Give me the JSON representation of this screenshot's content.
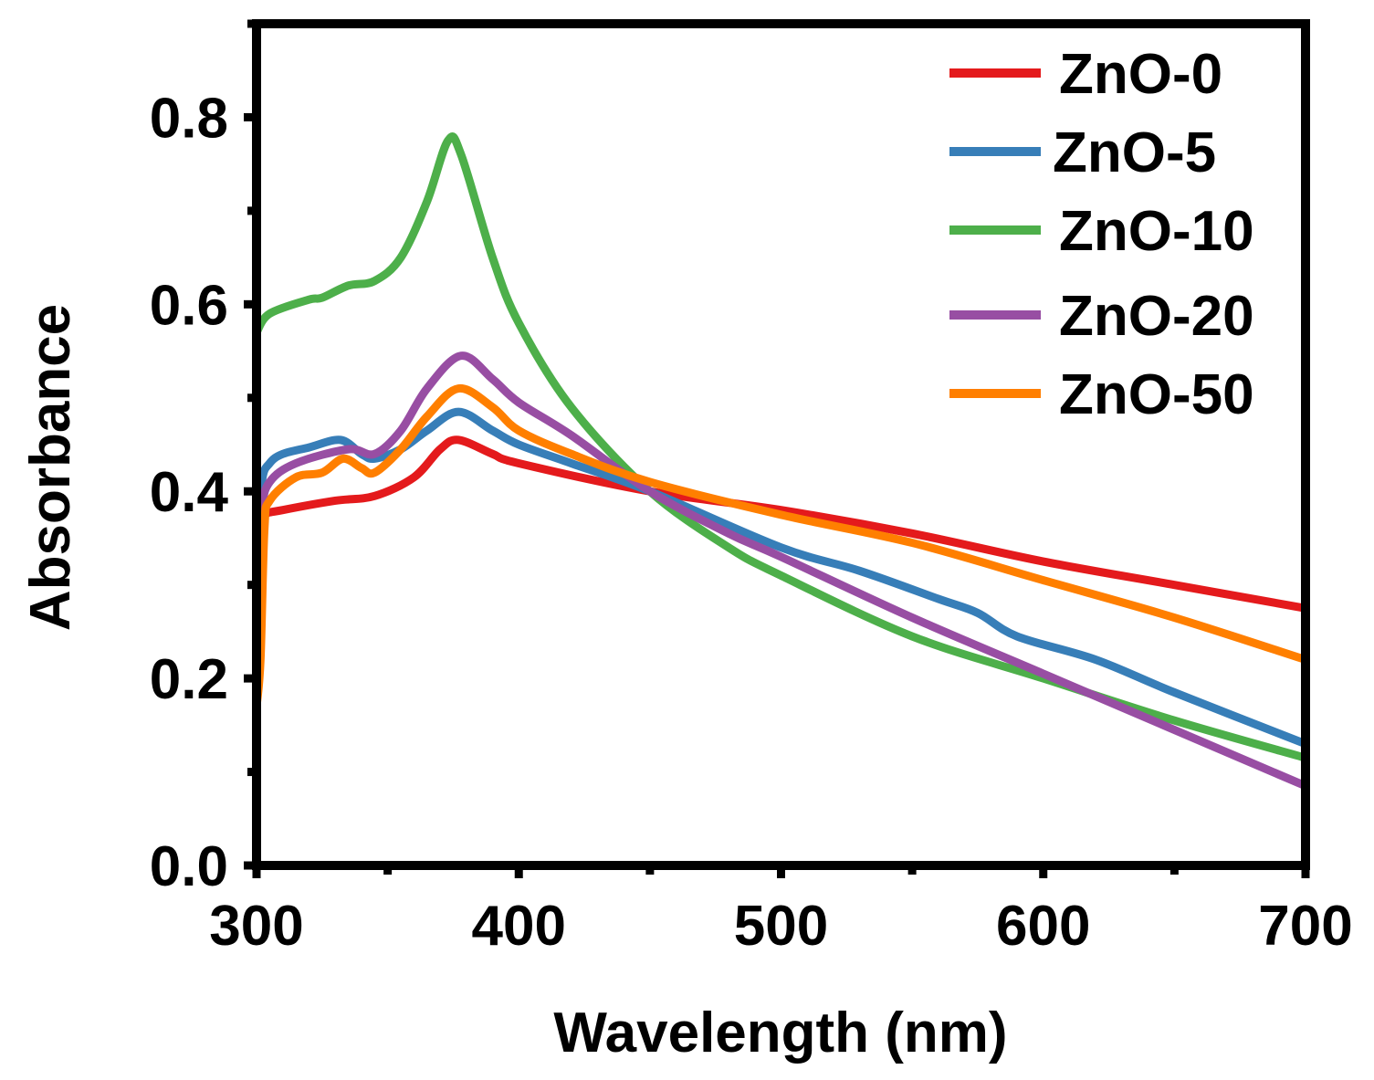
{
  "chart_data": {
    "type": "line",
    "title": "",
    "xlabel": "Wavelength (nm)",
    "ylabel": "Absorbance",
    "xlim": [
      300,
      700
    ],
    "ylim": [
      0,
      0.9
    ],
    "xticks": [
      300,
      400,
      500,
      600,
      700
    ],
    "xtick_labels": [
      "300",
      "400",
      "500",
      "600",
      "700"
    ],
    "yticks": [
      0.0,
      0.2,
      0.4,
      0.6,
      0.8
    ],
    "ytick_labels": [
      "0.0",
      "0.2",
      "0.4",
      "0.6",
      "0.8"
    ],
    "grid": false,
    "legend_position": "top-right",
    "series": [
      {
        "name": "ZnO-0",
        "color": "#e41a1c",
        "x": [
          301,
          303,
          310,
          330,
          345,
          360,
          370,
          377,
          390,
          400,
          450,
          500,
          550,
          600,
          650,
          700
        ],
        "y": [
          0.36,
          0.375,
          0.38,
          0.39,
          0.395,
          0.415,
          0.445,
          0.455,
          0.44,
          0.43,
          0.4,
          0.38,
          0.355,
          0.325,
          0.3,
          0.275
        ]
      },
      {
        "name": "ZnO-5",
        "color": "#377eb8",
        "x": [
          300,
          302,
          305,
          310,
          320,
          332,
          340,
          345,
          355,
          365,
          377,
          390,
          400,
          420,
          450,
          500,
          530,
          560,
          575,
          590,
          620,
          650,
          700
        ],
        "y": [
          0.33,
          0.41,
          0.43,
          0.44,
          0.447,
          0.455,
          0.44,
          0.435,
          0.445,
          0.465,
          0.485,
          0.465,
          0.45,
          0.43,
          0.4,
          0.34,
          0.315,
          0.285,
          0.27,
          0.245,
          0.22,
          0.185,
          0.13
        ]
      },
      {
        "name": "ZnO-10",
        "color": "#4daf4a",
        "x": [
          300,
          305,
          320,
          325,
          335,
          345,
          355,
          365,
          373,
          378,
          390,
          400,
          420,
          450,
          480,
          500,
          550,
          600,
          650,
          700
        ],
        "y": [
          0.57,
          0.59,
          0.605,
          0.607,
          0.62,
          0.625,
          0.65,
          0.71,
          0.775,
          0.76,
          0.65,
          0.58,
          0.49,
          0.4,
          0.34,
          0.31,
          0.245,
          0.2,
          0.155,
          0.115
        ]
      },
      {
        "name": "ZnO-20",
        "color": "#984ea3",
        "x": [
          300,
          302,
          305,
          315,
          335,
          345,
          355,
          365,
          378,
          390,
          400,
          420,
          450,
          480,
          500,
          550,
          600,
          650,
          700
        ],
        "y": [
          0.3,
          0.38,
          0.41,
          0.43,
          0.445,
          0.44,
          0.465,
          0.51,
          0.545,
          0.52,
          0.495,
          0.46,
          0.4,
          0.355,
          0.33,
          0.265,
          0.205,
          0.145,
          0.085
        ]
      },
      {
        "name": "ZnO-50",
        "color": "#ff7f00",
        "x": [
          300,
          301.5,
          303,
          305,
          315,
          325,
          333,
          340,
          345,
          355,
          365,
          377,
          390,
          400,
          420,
          450,
          500,
          550,
          600,
          650,
          700
        ],
        "y": [
          0.17,
          0.22,
          0.36,
          0.39,
          0.415,
          0.42,
          0.435,
          0.425,
          0.42,
          0.445,
          0.48,
          0.51,
          0.49,
          0.465,
          0.44,
          0.41,
          0.375,
          0.345,
          0.305,
          0.265,
          0.22
        ]
      }
    ]
  }
}
